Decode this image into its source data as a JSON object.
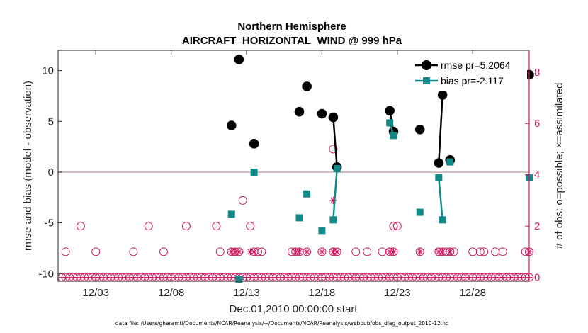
{
  "chart_data": {
    "type": "scatter",
    "title": "Northern Hemisphere",
    "subtitle": "AIRCRAFT_HORIZONTAL_WIND @ 999 hPa",
    "xlabel": "Dec.01,2010 00:00:00 start",
    "ylabel": "rmse and bias (model - observation)",
    "y2label": "# of obs: o=possible; ×=assimilated",
    "footer": "data file: /Users/gharamti/Documents/NCAR/Reanalysis/~/Documents/NCAR/Reanalysis/webpub/obs_diag_output_2010-12.nc",
    "xlim": [
      0.5,
      31.75
    ],
    "ylim": [
      -10.75,
      12
    ],
    "y2lim": [
      -0.15,
      8.85
    ],
    "x_ticks": [
      3,
      8,
      13,
      18,
      23,
      28
    ],
    "x_tick_labels": [
      "12/03",
      "12/08",
      "12/13",
      "12/18",
      "12/23",
      "12/28"
    ],
    "y_ticks": [
      -10,
      -5,
      0,
      5,
      10
    ],
    "y2_ticks": [
      0,
      2,
      4,
      6,
      8
    ],
    "zero_line": 0,
    "colors": {
      "rmse": "#000000",
      "bias": "#128a8a",
      "obs": "#d01a5e",
      "zero": "#c8a9b4",
      "axis": "#262626"
    },
    "legend_position": "top-right",
    "series": [
      {
        "name": "rmse",
        "legend": "rmse pr=5.2064",
        "points": [
          [
            12.0,
            4.6
          ],
          [
            12.5,
            11.1
          ],
          [
            13.5,
            2.8
          ],
          [
            16.5,
            5.95
          ],
          [
            17.0,
            8.45
          ],
          [
            18.0,
            5.75
          ],
          [
            18.75,
            5.4
          ],
          [
            19.0,
            0.5
          ],
          [
            22.5,
            6.05
          ],
          [
            22.75,
            4.0
          ],
          [
            24.5,
            4.2
          ],
          [
            25.75,
            0.9
          ],
          [
            26.0,
            7.6
          ],
          [
            26.5,
            1.2
          ],
          [
            31.75,
            9.6
          ]
        ],
        "segments": [
          [
            [
              18.75,
              5.4
            ],
            [
              19.0,
              0.5
            ]
          ],
          [
            [
              22.5,
              6.05
            ],
            [
              22.75,
              4.0
            ]
          ],
          [
            [
              25.75,
              0.9
            ],
            [
              26.0,
              7.6
            ]
          ]
        ]
      },
      {
        "name": "bias",
        "legend": "bias pr=-2.117",
        "points": [
          [
            12.0,
            -4.15
          ],
          [
            12.5,
            -10.55
          ],
          [
            13.5,
            0.0
          ],
          [
            16.5,
            -4.5
          ],
          [
            17.0,
            -2.15
          ],
          [
            18.0,
            -5.75
          ],
          [
            18.75,
            -4.7
          ],
          [
            19.0,
            0.35
          ],
          [
            22.5,
            4.85
          ],
          [
            22.75,
            3.6
          ],
          [
            24.5,
            -3.95
          ],
          [
            25.75,
            -0.55
          ],
          [
            26.0,
            -4.7
          ],
          [
            26.5,
            1.0
          ],
          [
            31.75,
            -0.55
          ]
        ],
        "segments": [
          [
            [
              18.75,
              -4.7
            ],
            [
              19.0,
              0.35
            ]
          ],
          [
            [
              22.5,
              4.85
            ],
            [
              22.75,
              3.6
            ]
          ],
          [
            [
              25.75,
              -0.55
            ],
            [
              26.0,
              -4.7
            ]
          ]
        ]
      }
    ],
    "obs_possible": [
      [
        1.0,
        1
      ],
      [
        2.0,
        2
      ],
      [
        3.0,
        1
      ],
      [
        5.5,
        1
      ],
      [
        6.5,
        2
      ],
      [
        7.5,
        1
      ],
      [
        9.0,
        2
      ],
      [
        11.0,
        2
      ],
      [
        11.25,
        1
      ],
      [
        12.0,
        1
      ],
      [
        12.25,
        1
      ],
      [
        12.5,
        1
      ],
      [
        12.75,
        3
      ],
      [
        13.25,
        2
      ],
      [
        13.5,
        1
      ],
      [
        13.75,
        1
      ],
      [
        14.0,
        1
      ],
      [
        16.0,
        1
      ],
      [
        16.25,
        1
      ],
      [
        16.5,
        1
      ],
      [
        17.0,
        1
      ],
      [
        18.0,
        1
      ],
      [
        18.75,
        1
      ],
      [
        19.0,
        1
      ],
      [
        18.75,
        5
      ],
      [
        20.25,
        1
      ],
      [
        21.0,
        1
      ],
      [
        22.0,
        1
      ],
      [
        22.5,
        1
      ],
      [
        22.75,
        1
      ],
      [
        22.75,
        2
      ],
      [
        23.0,
        2
      ],
      [
        24.5,
        1
      ],
      [
        25.75,
        1
      ],
      [
        26.0,
        1
      ],
      [
        26.25,
        1
      ],
      [
        26.5,
        1
      ],
      [
        26.75,
        1
      ],
      [
        28.0,
        1
      ],
      [
        28.5,
        1
      ],
      [
        28.75,
        1
      ],
      [
        29.5,
        1
      ],
      [
        30.0,
        1
      ],
      [
        31.5,
        1
      ],
      [
        31.75,
        1
      ]
    ],
    "obs_assimilated": [
      [
        12.0,
        1
      ],
      [
        12.25,
        1
      ],
      [
        12.5,
        1
      ],
      [
        13.25,
        1
      ],
      [
        13.5,
        1
      ],
      [
        16.25,
        1
      ],
      [
        16.5,
        1
      ],
      [
        17.0,
        1
      ],
      [
        18.0,
        1
      ],
      [
        18.75,
        1
      ],
      [
        18.75,
        3
      ],
      [
        19.0,
        1
      ],
      [
        22.5,
        1
      ],
      [
        22.75,
        1
      ],
      [
        24.5,
        1
      ],
      [
        25.75,
        1
      ],
      [
        26.0,
        1
      ],
      [
        26.5,
        1
      ],
      [
        31.75,
        1
      ]
    ],
    "obs_zero_spacing": 0.25
  }
}
